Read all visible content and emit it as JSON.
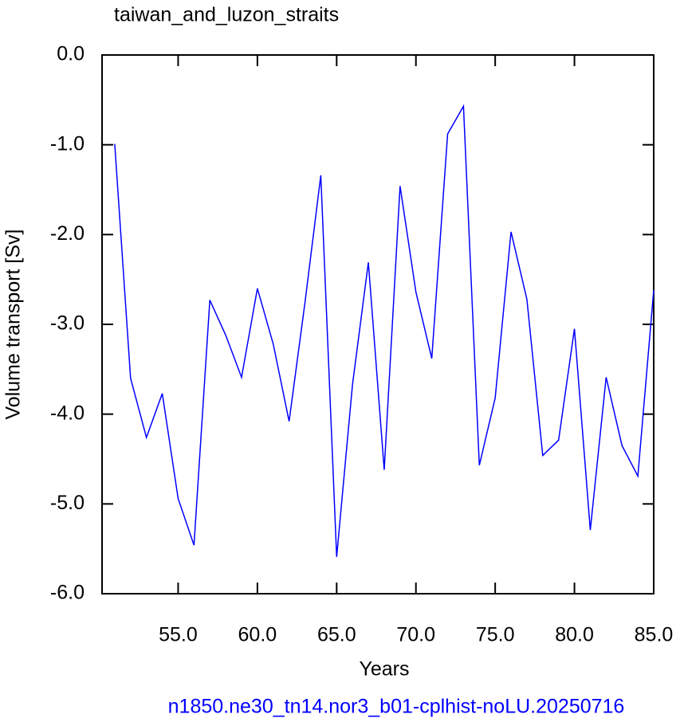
{
  "chart_data": {
    "type": "line",
    "title": "taiwan_and_luzon_straits",
    "x_label": "Years",
    "y_label": "Volume transport [Sv]",
    "footer": "n1850.ne30_tn14.nor3_b01-cplhist-noLU.20250716",
    "x": [
      51,
      52,
      53,
      54,
      55,
      56,
      57,
      58,
      59,
      60,
      61,
      62,
      63,
      64,
      65,
      66,
      67,
      68,
      69,
      70,
      71,
      72,
      73,
      74,
      75,
      76,
      77,
      78,
      79,
      80,
      81,
      82,
      83,
      84,
      85
    ],
    "series": [
      {
        "color": "#0000ff",
        "values": [
          -0.99,
          -3.6,
          -4.26,
          -3.77,
          -4.94,
          -5.46,
          -2.73,
          -3.12,
          -3.59,
          -2.6,
          -3.22,
          -4.08,
          -2.76,
          -1.34,
          -5.59,
          -3.67,
          -2.31,
          -4.62,
          -1.46,
          -2.64,
          -3.38,
          -0.88,
          -0.57,
          -4.57,
          -3.82,
          -1.97,
          -2.72,
          -4.46,
          -4.29,
          -3.05,
          -5.29,
          -3.59,
          -4.35,
          -4.69,
          -2.62
        ]
      }
    ],
    "xlim": [
      50.2,
      85
    ],
    "ylim": [
      -6,
      0
    ],
    "xticks": [
      {
        "value": 55,
        "label": "55.0"
      },
      {
        "value": 60,
        "label": "60.0"
      },
      {
        "value": 65,
        "label": "65.0"
      },
      {
        "value": 70,
        "label": "70.0"
      },
      {
        "value": 75,
        "label": "75.0"
      },
      {
        "value": 80,
        "label": "80.0"
      },
      {
        "value": 85,
        "label": "85.0"
      }
    ],
    "yticks": [
      {
        "value": 0,
        "label": "0.0"
      },
      {
        "value": -1,
        "label": "-1.0"
      },
      {
        "value": -2,
        "label": "-2.0"
      },
      {
        "value": -3,
        "label": "-3.0"
      },
      {
        "value": -4,
        "label": "-4.0"
      },
      {
        "value": -5,
        "label": "-5.0"
      },
      {
        "value": -6,
        "label": "-6.0"
      }
    ],
    "grid": false
  }
}
